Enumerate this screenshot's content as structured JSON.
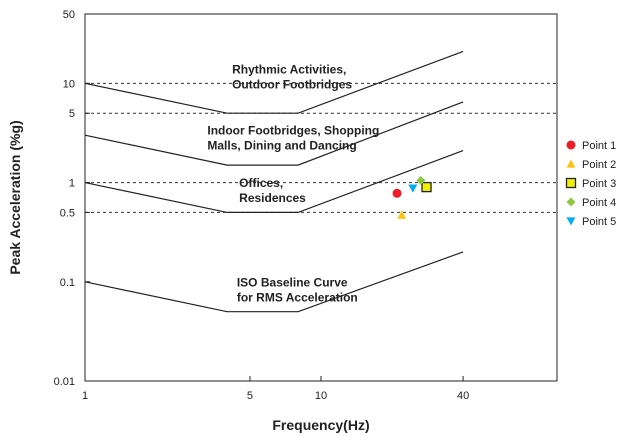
{
  "chart_data": {
    "type": "scatter",
    "title": "",
    "xlabel": "Frequency(Hz)",
    "ylabel": "Peak Acceleration (%g)",
    "xscale": "log",
    "yscale": "log",
    "xlim": [
      1,
      100
    ],
    "ylim": [
      0.01,
      50
    ],
    "x_ticks": [
      {
        "value": 1,
        "label": "1"
      },
      {
        "value": 5,
        "label": "5"
      },
      {
        "value": 10,
        "label": "10"
      },
      {
        "value": 40,
        "label": "40"
      }
    ],
    "y_ticks": [
      {
        "value": 0.01,
        "label": "0.01"
      },
      {
        "value": 0.1,
        "label": "0.1"
      },
      {
        "value": 0.5,
        "label": "0.5"
      },
      {
        "value": 1,
        "label": "1"
      },
      {
        "value": 5,
        "label": "5"
      },
      {
        "value": 10,
        "label": "10"
      },
      {
        "value": 50,
        "label": "50"
      }
    ],
    "grid_y_dashed": [
      0.5,
      1,
      5,
      10
    ],
    "legend_position": "right",
    "curves": [
      {
        "label_lines": [
          "Rhythmic Activities,",
          "Outdoor Footbridges"
        ],
        "label_at": [
          4.2,
          12.5
        ],
        "points": [
          [
            1,
            10
          ],
          [
            4,
            5
          ],
          [
            8,
            5
          ],
          [
            40,
            21
          ]
        ]
      },
      {
        "label_lines": [
          "Indoor Footbridges, Shopping",
          "Malls, Dining and Dancing"
        ],
        "label_at": [
          3.3,
          3.05
        ],
        "points": [
          [
            1,
            3
          ],
          [
            4,
            1.5
          ],
          [
            8,
            1.5
          ],
          [
            40,
            6.5
          ]
        ]
      },
      {
        "label_lines": [
          "Offices,",
          "Residences"
        ],
        "label_at": [
          4.5,
          0.9
        ],
        "points": [
          [
            1,
            1
          ],
          [
            4,
            0.5
          ],
          [
            8,
            0.5
          ],
          [
            40,
            2.1
          ]
        ]
      },
      {
        "label_lines": [
          "ISO Baseline Curve",
          "for RMS Acceleration"
        ],
        "label_at": [
          4.4,
          0.09
        ],
        "points": [
          [
            1,
            0.1
          ],
          [
            4,
            0.05
          ],
          [
            8,
            0.05
          ],
          [
            40,
            0.2
          ]
        ]
      }
    ],
    "series": [
      {
        "name": "Point 1",
        "color": "#ee1c25",
        "marker": "circle",
        "x": 21,
        "y": 0.78
      },
      {
        "name": "Point 2",
        "color": "#ffc20e",
        "marker": "triangle-up",
        "x": 22,
        "y": 0.47
      },
      {
        "name": "Point 3",
        "color": "#f0f000",
        "marker": "square",
        "x": 28,
        "y": 0.9
      },
      {
        "name": "Point 4",
        "color": "#8dc63f",
        "marker": "diamond",
        "x": 26.5,
        "y": 1.05
      },
      {
        "name": "Point 5",
        "color": "#00aeef",
        "marker": "triangle-down",
        "x": 24.5,
        "y": 0.88
      }
    ]
  }
}
